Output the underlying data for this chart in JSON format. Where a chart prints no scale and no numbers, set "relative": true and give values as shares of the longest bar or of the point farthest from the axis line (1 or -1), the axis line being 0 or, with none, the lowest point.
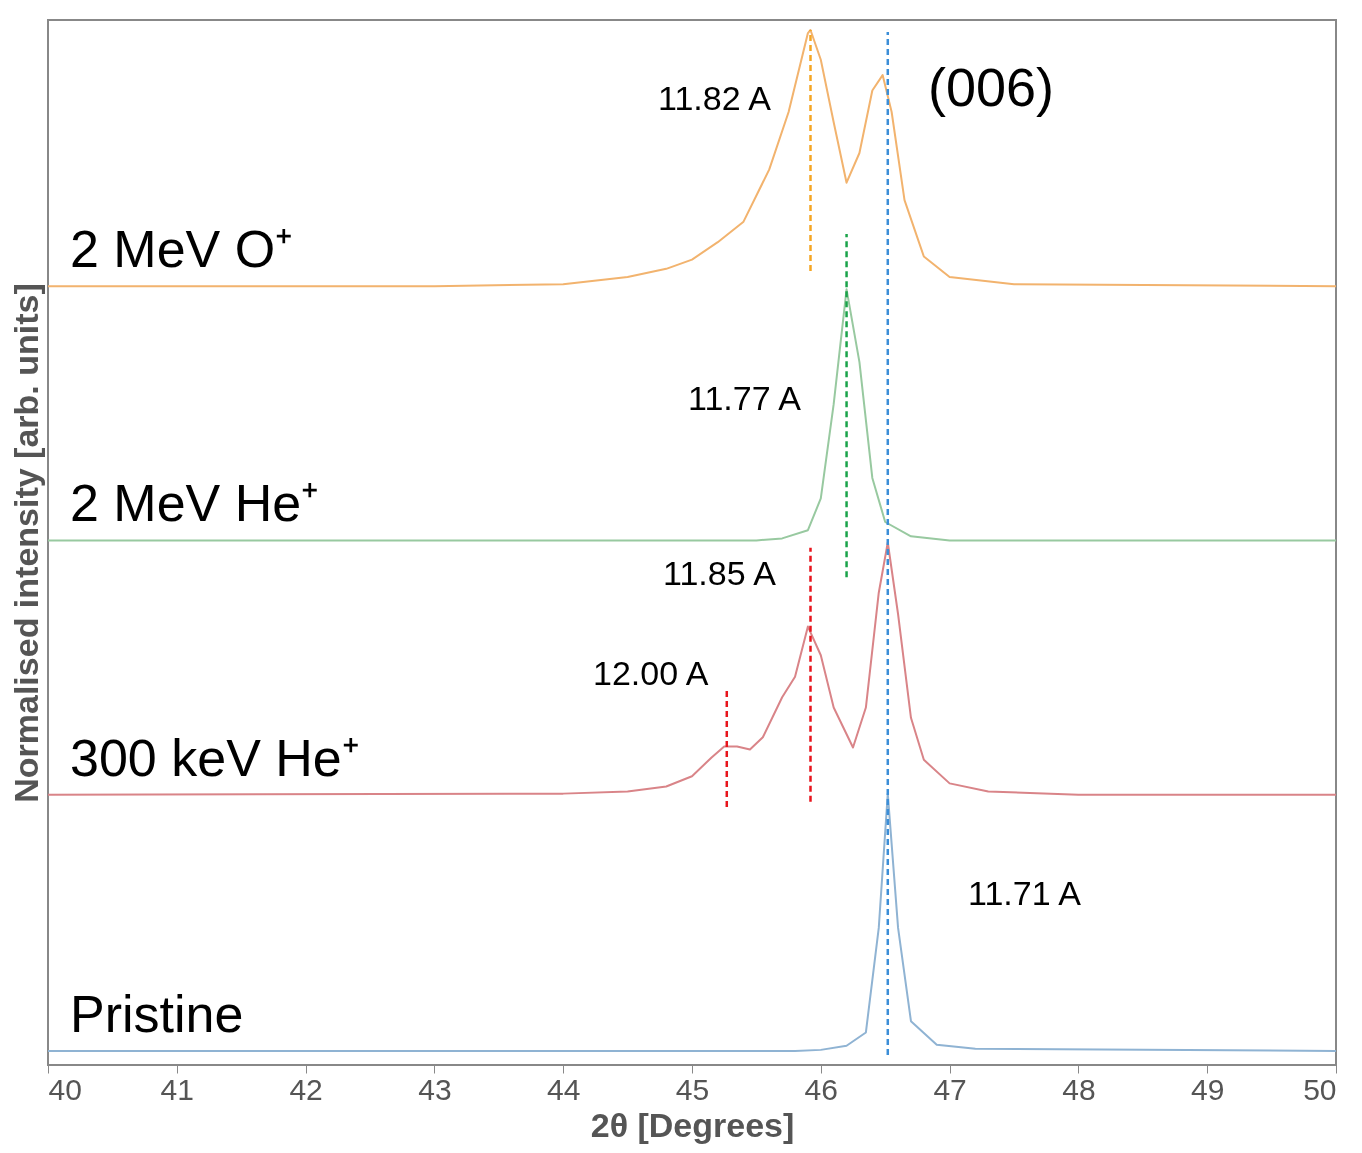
{
  "chart_data": {
    "type": "line",
    "relative": true,
    "xlabel": "2θ [Degrees]",
    "ylabel": "Normalised intensity [arb. units]",
    "xlim": [
      40,
      50
    ],
    "xticks": [
      40,
      41,
      42,
      43,
      44,
      45,
      46,
      47,
      48,
      49,
      50
    ],
    "grid": false,
    "marker": "none",
    "series": [
      {
        "name": "2 MeV O⁺",
        "color": "#f2b36e",
        "x": [
          40,
          43,
          44,
          44.5,
          44.8,
          45.0,
          45.2,
          45.4,
          45.6,
          45.75,
          45.9,
          45.92,
          46.0,
          46.1,
          46.2,
          46.3,
          46.4,
          46.48,
          46.55,
          46.65,
          46.8,
          47.0,
          47.5,
          50
        ],
        "values": [
          0.75,
          0.75,
          0.752,
          0.759,
          0.767,
          0.776,
          0.793,
          0.813,
          0.864,
          0.92,
          0.997,
          1.0,
          0.971,
          0.91,
          0.851,
          0.88,
          0.941,
          0.956,
          0.92,
          0.834,
          0.779,
          0.759,
          0.752,
          0.75
        ]
      },
      {
        "name": "2 MeV He⁺",
        "color": "#98c9a0",
        "x": [
          40,
          45.5,
          45.7,
          45.9,
          46.0,
          46.1,
          46.2,
          46.3,
          46.4,
          46.5,
          46.7,
          47.0,
          50
        ],
        "values": [
          0.502,
          0.502,
          0.504,
          0.512,
          0.543,
          0.635,
          0.747,
          0.676,
          0.563,
          0.52,
          0.506,
          0.502,
          0.502
        ]
      },
      {
        "name": "300 keV He⁺",
        "color": "#d98488",
        "x": [
          40,
          44,
          44.5,
          44.8,
          45.0,
          45.15,
          45.25,
          45.35,
          45.45,
          45.55,
          45.7,
          45.8,
          45.9,
          46.0,
          46.1,
          46.25,
          46.35,
          46.45,
          46.52,
          46.6,
          46.7,
          46.8,
          47.0,
          47.3,
          48,
          50
        ],
        "values": [
          0.254,
          0.255,
          0.257,
          0.262,
          0.272,
          0.29,
          0.301,
          0.301,
          0.298,
          0.31,
          0.349,
          0.369,
          0.418,
          0.39,
          0.339,
          0.3,
          0.339,
          0.451,
          0.5,
          0.43,
          0.329,
          0.288,
          0.265,
          0.257,
          0.254,
          0.254
        ]
      },
      {
        "name": "Pristine",
        "color": "#8fb3d3",
        "x": [
          40,
          45.8,
          46.0,
          46.2,
          46.35,
          46.45,
          46.52,
          46.6,
          46.7,
          46.9,
          47.2,
          50
        ],
        "values": [
          0.004,
          0.004,
          0.005,
          0.009,
          0.022,
          0.124,
          0.255,
          0.124,
          0.033,
          0.01,
          0.006,
          0.004
        ]
      },
      {
        "type": "line",
        "line_style": "dashed",
        "color": "#f5a623",
        "x": [
          45.92,
          45.92
        ],
        "values": [
          0.765,
          1.0
        ]
      },
      {
        "type": "line",
        "line_style": "dashed",
        "color": "#3b8ed8",
        "x": [
          46.52,
          46.52
        ],
        "values": [
          0.0,
          0.998
        ]
      },
      {
        "type": "line",
        "line_style": "dashed",
        "color": "#1aa34a",
        "x": [
          46.2,
          46.2
        ],
        "values": [
          0.466,
          0.801
        ]
      },
      {
        "type": "line",
        "line_style": "dashed",
        "color": "#e8141c",
        "x": [
          45.92,
          45.92
        ],
        "values": [
          0.247,
          0.495
        ]
      },
      {
        "type": "line",
        "line_style": "dashed",
        "color": "#e8141c",
        "x": [
          45.27,
          45.27
        ],
        "values": [
          0.242,
          0.359
        ]
      }
    ],
    "annotations": [
      "11.82 A",
      "11.77 A",
      "11.85 A",
      "12.00 A",
      "11.71 A",
      "(006)"
    ]
  }
}
